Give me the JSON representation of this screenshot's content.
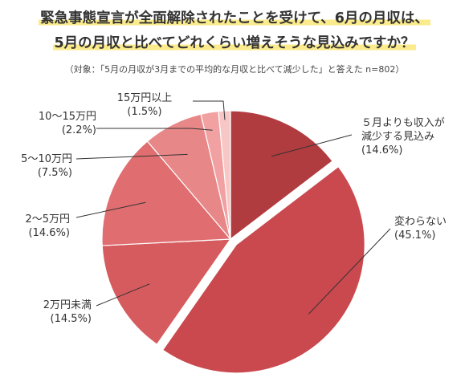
{
  "title_line1": "緊急事態宣言が全面解除されたことを受けて、6月の月収は、",
  "title_line2": "5月の月収と比べてどれくらい増えそうな見込みですか？",
  "subtitle": "（対象：「5月の月収が3月までの平均的な月収と比べて減少した」と答えた n=802）",
  "chart_data": {
    "type": "pie",
    "title": "緊急事態宣言が全面解除されたことを受けて、6月の月収は、5月の月収と比べてどれくらい増えそうな見込みですか？",
    "subtitle": "（対象：「5月の月収が3月までの平均的な月収と比べて減少した」と答えた n=802）",
    "start_angle": "12 o'clock",
    "direction": "clockwise",
    "slices": [
      {
        "label": "５月よりも収入が減少する見込み",
        "label_lines": [
          "５月よりも収入が",
          "減少する見込み"
        ],
        "value": 14.6,
        "display": "(14.6%)",
        "color": "#b13c3f"
      },
      {
        "label": "変わらない",
        "label_lines": [
          "変わらない"
        ],
        "value": 45.1,
        "display": "(45.1%)",
        "color": "#c9494e",
        "exploded": true
      },
      {
        "label": "2万円未満",
        "label_lines": [
          "2万円未満"
        ],
        "value": 14.5,
        "display": "(14.5%)",
        "color": "#d65b5e"
      },
      {
        "label": "2〜5万円",
        "label_lines": [
          "2〜5万円"
        ],
        "value": 14.6,
        "display": "(14.6%)",
        "color": "#e06e70"
      },
      {
        "label": "5〜10万円",
        "label_lines": [
          "5〜10万円"
        ],
        "value": 7.5,
        "display": "(7.5%)",
        "color": "#e88788"
      },
      {
        "label": "10〜15万円",
        "label_lines": [
          "10〜15万円"
        ],
        "value": 2.2,
        "display": "(2.2%)",
        "color": "#f1a1a1"
      },
      {
        "label": "15万円以上",
        "label_lines": [
          "15万円以上"
        ],
        "value": 1.5,
        "display": "(1.5%)",
        "color": "#f7c7c6"
      }
    ]
  }
}
